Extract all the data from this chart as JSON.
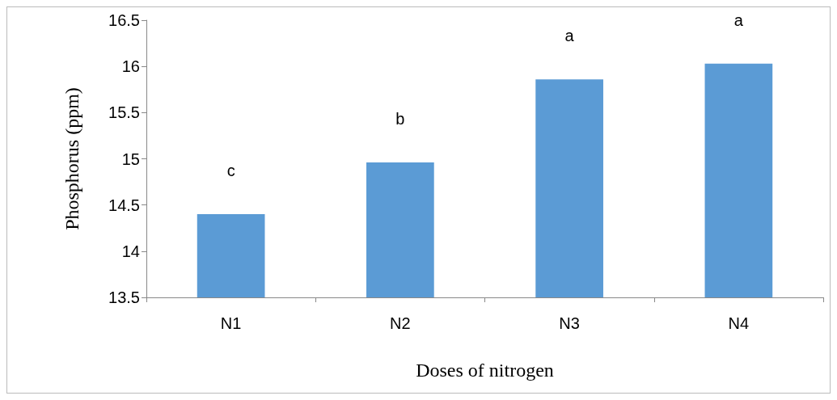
{
  "chart_data": {
    "type": "bar",
    "xlabel": "Doses of nitrogen",
    "ylabel": "Phosphorus (ppm)",
    "categories": [
      "N1",
      "N2",
      "N3",
      "N4"
    ],
    "values": [
      14.4,
      14.96,
      15.86,
      16.03
    ],
    "color": "#5b9bd5",
    "ylim": [
      13.5,
      16.5
    ],
    "yticks": [
      13.5,
      14,
      14.5,
      15,
      15.5,
      16,
      16.5
    ],
    "grid": false,
    "annotations": [
      "c",
      "b",
      "a",
      "a"
    ]
  }
}
